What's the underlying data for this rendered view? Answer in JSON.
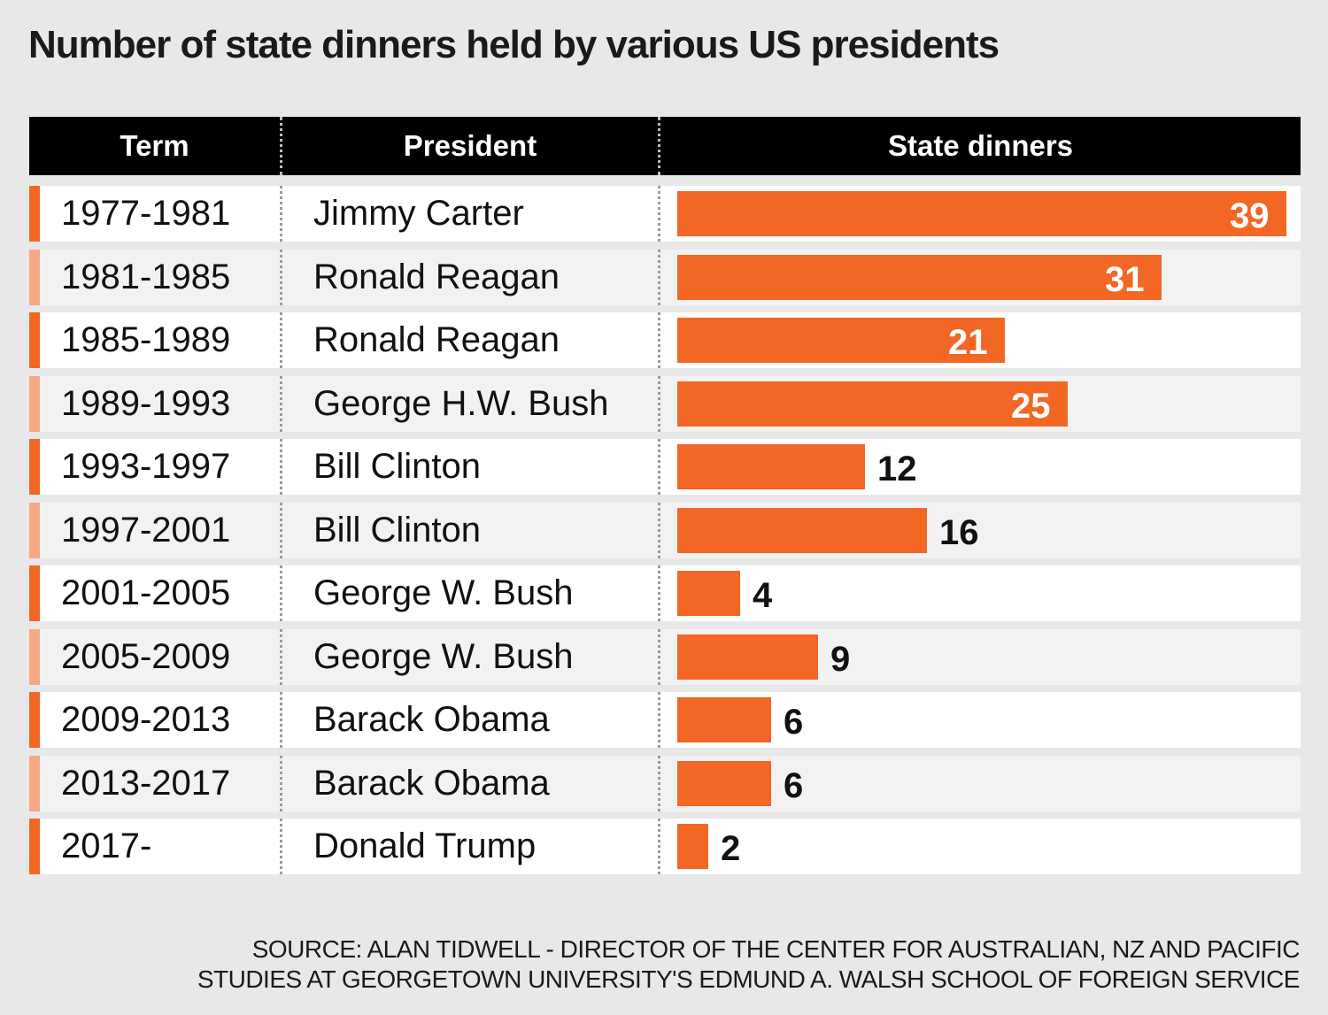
{
  "title": "Number of state dinners held by various US presidents",
  "colors": {
    "bar": "#f26724",
    "accent_dark": "#f26724",
    "accent_light": "#f4a883",
    "header_bg": "#000000"
  },
  "chart_data": {
    "type": "bar",
    "orientation": "horizontal",
    "title": "Number of state dinners held by various US presidents",
    "columns": [
      "Term",
      "President",
      "State dinners"
    ],
    "categories": [
      "1977-1981",
      "1981-1985",
      "1985-1989",
      "1989-1993",
      "1993-1997",
      "1997-2001",
      "2001-2005",
      "2005-2009",
      "2009-2013",
      "2013-2017",
      "2017-"
    ],
    "presidents": [
      "Jimmy Carter",
      "Ronald Reagan",
      "Ronald Reagan",
      "George H.W. Bush",
      "Bill Clinton",
      "Bill Clinton",
      "George W. Bush",
      "George W. Bush",
      "Barack Obama",
      "Barack Obama",
      "Donald Trump"
    ],
    "values": [
      39,
      31,
      21,
      25,
      12,
      16,
      4,
      9,
      6,
      6,
      2
    ],
    "xlim": [
      0,
      39
    ],
    "grid": false,
    "legend": "none"
  },
  "source_lines": [
    "SOURCE: ALAN TIDWELL - DIRECTOR OF THE CENTER FOR AUSTRALIAN, NZ AND PACIFIC",
    "STUDIES AT GEORGETOWN UNIVERSITY'S EDMUND A. WALSH SCHOOL OF FOREIGN SERVICE"
  ]
}
